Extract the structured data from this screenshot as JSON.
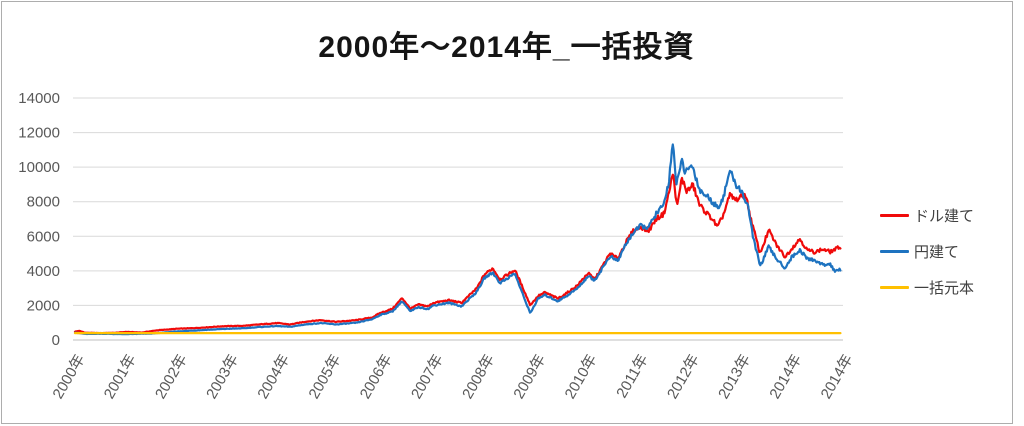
{
  "title": "2000年〜2014年_一括投資",
  "colors": {
    "series_usd": "#f00a0a",
    "series_jpy": "#1e73c0",
    "series_principal": "#ffc000",
    "gridline": "#d9d9d9",
    "axis_line": "#bfbfbf",
    "tick_label": "#595959",
    "legend_text": "#404040",
    "frame_border": "#adadad"
  },
  "legend": {
    "items": [
      {
        "key": "usd",
        "label": "ドル建て"
      },
      {
        "key": "jpy",
        "label": "円建て"
      },
      {
        "key": "principal",
        "label": "一括元本"
      }
    ]
  },
  "chart_data": {
    "type": "line",
    "title": "2000年〜2014年_一括投資",
    "xlabel": "",
    "ylabel": "",
    "ylim": [
      0,
      14000
    ],
    "y_ticks": [
      0,
      2000,
      4000,
      6000,
      8000,
      10000,
      12000,
      14000
    ],
    "x_tick_labels": [
      "2000年",
      "2001年",
      "2002年",
      "2003年",
      "2004年",
      "2005年",
      "2006年",
      "2007年",
      "2008年",
      "2009年",
      "2010年",
      "2011年",
      "2012年",
      "2013年",
      "2014年",
      "2014年"
    ],
    "grid": true,
    "legend_position": "right",
    "x_unit": "year (decimal)",
    "series": [
      {
        "key": "usd",
        "name": "ドル建て",
        "color": "#f00a0a",
        "points": [
          [
            2000.0,
            480
          ],
          [
            2000.08,
            530
          ],
          [
            2000.2,
            420
          ],
          [
            2000.5,
            400
          ],
          [
            2000.8,
            420
          ],
          [
            2001.0,
            470
          ],
          [
            2001.3,
            430
          ],
          [
            2001.6,
            560
          ],
          [
            2002.0,
            650
          ],
          [
            2002.4,
            700
          ],
          [
            2002.9,
            800
          ],
          [
            2003.3,
            820
          ],
          [
            2003.6,
            900
          ],
          [
            2003.95,
            980
          ],
          [
            2004.2,
            900
          ],
          [
            2004.5,
            1060
          ],
          [
            2004.8,
            1150
          ],
          [
            2005.1,
            1050
          ],
          [
            2005.5,
            1150
          ],
          [
            2005.8,
            1300
          ],
          [
            2005.96,
            1560
          ],
          [
            2006.2,
            1800
          ],
          [
            2006.39,
            2430
          ],
          [
            2006.55,
            1800
          ],
          [
            2006.7,
            2050
          ],
          [
            2006.9,
            1950
          ],
          [
            2007.0,
            2150
          ],
          [
            2007.3,
            2300
          ],
          [
            2007.55,
            2150
          ],
          [
            2007.85,
            3000
          ],
          [
            2008.0,
            3800
          ],
          [
            2008.16,
            4150
          ],
          [
            2008.3,
            3500
          ],
          [
            2008.59,
            4050
          ],
          [
            2008.75,
            3000
          ],
          [
            2008.89,
            2020
          ],
          [
            2009.05,
            2550
          ],
          [
            2009.18,
            2750
          ],
          [
            2009.43,
            2400
          ],
          [
            2009.6,
            2700
          ],
          [
            2009.82,
            3180
          ],
          [
            2010.02,
            3870
          ],
          [
            2010.15,
            3500
          ],
          [
            2010.3,
            4250
          ],
          [
            2010.45,
            5000
          ],
          [
            2010.6,
            4700
          ],
          [
            2010.75,
            5600
          ],
          [
            2010.9,
            6300
          ],
          [
            2011.05,
            6550
          ],
          [
            2011.2,
            6300
          ],
          [
            2011.35,
            7000
          ],
          [
            2011.5,
            7300
          ],
          [
            2011.6,
            8500
          ],
          [
            2011.68,
            9700
          ],
          [
            2011.76,
            7650
          ],
          [
            2011.85,
            9350
          ],
          [
            2011.95,
            8600
          ],
          [
            2012.07,
            8960
          ],
          [
            2012.2,
            7800
          ],
          [
            2012.35,
            7300
          ],
          [
            2012.45,
            7000
          ],
          [
            2012.55,
            6500
          ],
          [
            2012.67,
            7300
          ],
          [
            2012.79,
            8380
          ],
          [
            2012.9,
            8100
          ],
          [
            2013.0,
            8250
          ],
          [
            2013.1,
            8400
          ],
          [
            2013.2,
            7000
          ],
          [
            2013.3,
            5900
          ],
          [
            2013.38,
            5000
          ],
          [
            2013.55,
            6350
          ],
          [
            2013.7,
            5500
          ],
          [
            2013.87,
            4800
          ],
          [
            2014.0,
            5300
          ],
          [
            2014.16,
            5850
          ],
          [
            2014.3,
            5200
          ],
          [
            2014.45,
            5090
          ],
          [
            2014.6,
            5250
          ],
          [
            2014.75,
            5100
          ],
          [
            2014.95,
            5400
          ]
        ]
      },
      {
        "key": "jpy",
        "name": "円建て",
        "color": "#1e73c0",
        "points": [
          [
            2000.0,
            430
          ],
          [
            2000.2,
            350
          ],
          [
            2000.5,
            360
          ],
          [
            2001.0,
            340
          ],
          [
            2001.5,
            370
          ],
          [
            2002.0,
            500
          ],
          [
            2002.4,
            560
          ],
          [
            2002.9,
            640
          ],
          [
            2003.3,
            680
          ],
          [
            2003.6,
            750
          ],
          [
            2003.95,
            810
          ],
          [
            2004.2,
            760
          ],
          [
            2004.5,
            900
          ],
          [
            2004.8,
            980
          ],
          [
            2005.1,
            900
          ],
          [
            2005.5,
            1000
          ],
          [
            2005.8,
            1200
          ],
          [
            2005.96,
            1450
          ],
          [
            2006.2,
            1650
          ],
          [
            2006.39,
            2250
          ],
          [
            2006.55,
            1650
          ],
          [
            2006.7,
            1900
          ],
          [
            2006.9,
            1800
          ],
          [
            2007.0,
            2000
          ],
          [
            2007.3,
            2150
          ],
          [
            2007.55,
            1950
          ],
          [
            2007.85,
            2800
          ],
          [
            2008.0,
            3600
          ],
          [
            2008.16,
            3900
          ],
          [
            2008.3,
            3300
          ],
          [
            2008.59,
            3850
          ],
          [
            2008.75,
            2600
          ],
          [
            2008.89,
            1560
          ],
          [
            2009.05,
            2400
          ],
          [
            2009.18,
            2600
          ],
          [
            2009.43,
            2250
          ],
          [
            2009.6,
            2550
          ],
          [
            2009.82,
            3000
          ],
          [
            2010.02,
            3700
          ],
          [
            2010.15,
            3450
          ],
          [
            2010.3,
            4150
          ],
          [
            2010.45,
            4850
          ],
          [
            2010.6,
            4550
          ],
          [
            2010.75,
            5500
          ],
          [
            2010.9,
            6200
          ],
          [
            2011.05,
            6600
          ],
          [
            2011.2,
            6500
          ],
          [
            2011.35,
            7300
          ],
          [
            2011.5,
            7800
          ],
          [
            2011.6,
            9200
          ],
          [
            2011.68,
            11600
          ],
          [
            2011.74,
            8800
          ],
          [
            2011.85,
            10580
          ],
          [
            2011.9,
            9500
          ],
          [
            2011.97,
            10000
          ],
          [
            2012.07,
            10000
          ],
          [
            2012.2,
            8670
          ],
          [
            2012.35,
            8300
          ],
          [
            2012.45,
            8000
          ],
          [
            2012.55,
            7650
          ],
          [
            2012.67,
            8300
          ],
          [
            2012.79,
            9830
          ],
          [
            2012.9,
            9000
          ],
          [
            2013.0,
            8700
          ],
          [
            2013.15,
            7700
          ],
          [
            2013.25,
            5800
          ],
          [
            2013.32,
            5100
          ],
          [
            2013.38,
            4250
          ],
          [
            2013.55,
            5400
          ],
          [
            2013.7,
            4700
          ],
          [
            2013.87,
            4160
          ],
          [
            2014.0,
            4800
          ],
          [
            2014.16,
            5200
          ],
          [
            2014.3,
            4700
          ],
          [
            2014.45,
            4620
          ],
          [
            2014.6,
            4350
          ],
          [
            2014.75,
            4400
          ],
          [
            2014.85,
            3930
          ],
          [
            2014.95,
            4100
          ]
        ]
      },
      {
        "key": "principal",
        "name": "一括元本",
        "color": "#ffc000",
        "points": [
          [
            2000.0,
            400
          ],
          [
            2014.95,
            400
          ]
        ]
      }
    ]
  }
}
